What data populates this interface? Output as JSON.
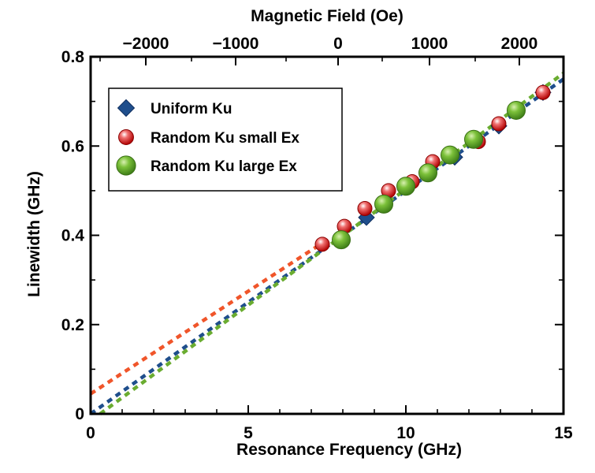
{
  "chart_data": {
    "type": "scatter",
    "title": "",
    "xlabel": "Resonance Frequency (GHz)",
    "ylabel": "Linewidth (GHz)",
    "x2label": "Magnetic Field (Oe)",
    "xlim": [
      0,
      15
    ],
    "ylim": [
      0,
      0.8
    ],
    "x_ticks": [
      0,
      5,
      10,
      15
    ],
    "y_ticks": [
      0,
      0.2,
      0.4,
      0.6,
      0.8
    ],
    "top_axis": {
      "ticks": [
        {
          "label": "−2000",
          "freq": 1.75
        },
        {
          "label": "−1000",
          "freq": 4.6
        },
        {
          "label": "0",
          "freq": 7.85
        },
        {
          "label": "1000",
          "freq": 10.75
        },
        {
          "label": "2000",
          "freq": 13.6
        }
      ],
      "minor_freqs": [
        0.3,
        3.2,
        6.2,
        9.25,
        12.2
      ]
    },
    "grid": false,
    "legend_position": "top-left",
    "series": [
      {
        "name": "Uniform Ku",
        "marker": "diamond",
        "color": "#1f4e8c",
        "x": [
          8.75,
          11.55,
          12.95,
          14.35
        ],
        "y": [
          0.44,
          0.575,
          0.645,
          0.72
        ]
      },
      {
        "name": "Random Ku small Ex",
        "marker": "sphere",
        "color": "#d42020",
        "x": [
          7.35,
          8.05,
          8.7,
          9.45,
          10.2,
          10.85,
          12.3,
          12.95,
          14.35
        ],
        "y": [
          0.38,
          0.42,
          0.46,
          0.5,
          0.52,
          0.565,
          0.61,
          0.65,
          0.72
        ]
      },
      {
        "name": "Random Ku large Ex",
        "marker": "sphere",
        "color": "#5aa62a",
        "x": [
          7.95,
          9.3,
          10.0,
          10.7,
          11.4,
          12.15,
          13.5
        ],
        "y": [
          0.39,
          0.47,
          0.51,
          0.54,
          0.58,
          0.615,
          0.68
        ]
      }
    ],
    "fit_lines": [
      {
        "color": "#f0552a",
        "x": [
          0,
          7.4
        ],
        "y": [
          0.045,
          0.385
        ]
      },
      {
        "color": "#1f4e8c",
        "x": [
          0,
          15
        ],
        "y": [
          0.0,
          0.75
        ]
      },
      {
        "color": "#6aac30",
        "x": [
          0.3,
          15
        ],
        "y": [
          0.0,
          0.763
        ]
      }
    ]
  }
}
